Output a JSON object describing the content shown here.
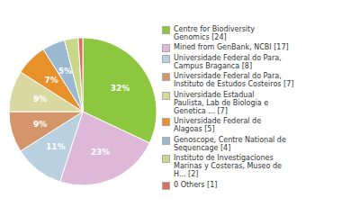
{
  "chart_data": {
    "type": "pie",
    "categories": [
      "Centre for Biodiversity\nGenomics [24]",
      "Mined from GenBank, NCBI [17]",
      "Universidade Federal do Para,\nCampus Braganca [8]",
      "Universidade Federal do Para,\nInstituto de Estudos Costeiros [7]",
      "Universidade Estadual\nPaulista, Lab de Biologia e\nGenetica ... [7]",
      "Universidade Federal de\nAlagoas [5]",
      "Genoscope, Centre National de\nSequencage [4]",
      "Instituto de Investigaciones\nMarinas y Costeras, Museo de\nH... [2]",
      "0 Others [1]"
    ],
    "values": [
      32,
      23,
      11,
      9,
      9,
      7,
      5,
      3,
      1
    ],
    "value_labels": [
      "32%",
      "23%",
      "11%",
      "9%",
      "9%",
      "7%",
      "5%",
      null,
      null
    ],
    "colors": [
      "#8dc63f",
      "#ddb8d8",
      "#b8d0e0",
      "#d4956a",
      "#d8d8a0",
      "#e8912a",
      "#9ab8d0",
      "#c8d888",
      "#d87060"
    ],
    "data_labels": true,
    "legend": "right"
  }
}
